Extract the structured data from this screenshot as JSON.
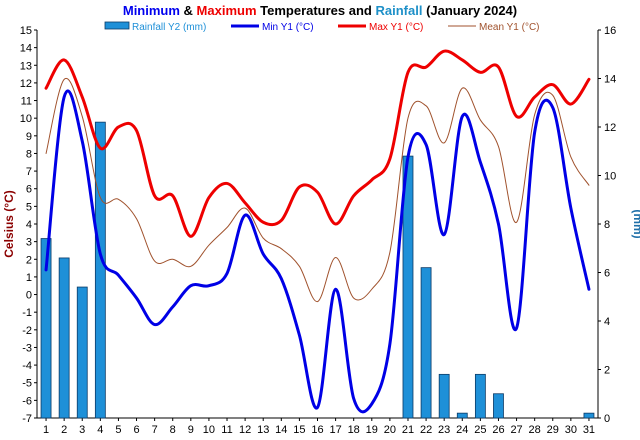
{
  "chart_data": {
    "type": "bar+line",
    "title_parts": [
      {
        "text": "Minimum",
        "color": "#0000ee"
      },
      {
        "text": " & ",
        "color": "#000000"
      },
      {
        "text": "Maximum",
        "color": "#ee0000"
      },
      {
        "text": " Temperatures and ",
        "color": "#000000"
      },
      {
        "text": "Rainfall",
        "color": "#1e90c8"
      },
      {
        "text": " (January 2024)",
        "color": "#000000"
      }
    ],
    "ylabel_left": "Celsius (°C)",
    "ylabel_right": "(mm)",
    "x": [
      1,
      2,
      3,
      4,
      5,
      6,
      7,
      8,
      9,
      10,
      11,
      12,
      13,
      14,
      15,
      16,
      17,
      18,
      19,
      20,
      21,
      22,
      23,
      24,
      25,
      26,
      27,
      28,
      29,
      30,
      31
    ],
    "x_tick_labels": [
      "1",
      "2",
      "3",
      "4",
      "5",
      "6",
      "7",
      "8",
      "9",
      "10",
      "11",
      "12",
      "13",
      "14",
      "15",
      "16",
      "17",
      "18",
      "19",
      "20",
      "21",
      "22",
      "23",
      "24",
      "25",
      "26",
      "27",
      "28",
      "29",
      "30",
      "31"
    ],
    "ylim_left": [
      -7,
      15
    ],
    "yticks_left": [
      "15",
      "14",
      "13",
      "12",
      "11",
      "10",
      "9",
      "8",
      "7",
      "6",
      "5",
      "4",
      "3",
      "2",
      "1",
      "0",
      "-1",
      "-2",
      "-3",
      "-4",
      "-5",
      "-6",
      "-7"
    ],
    "ylim_right": [
      0,
      16
    ],
    "yticks_right": [
      "16",
      "14",
      "12",
      "10",
      "8",
      "6",
      "4",
      "2",
      "0"
    ],
    "series": [
      {
        "name": "Rainfall Y2 (mm)",
        "type": "bar",
        "axis": "right",
        "color": "#1e90d8",
        "values": [
          7.4,
          6.6,
          5.4,
          12.2,
          0,
          0,
          0,
          0,
          0,
          0,
          0,
          0,
          0,
          0,
          0,
          0,
          0,
          0,
          0,
          0,
          10.8,
          6.2,
          1.8,
          0.2,
          1.8,
          1.0,
          0,
          0,
          0,
          0,
          0.2
        ]
      },
      {
        "name": "Min Y1 (°C)",
        "type": "line",
        "axis": "left",
        "color": "#0000e6",
        "values": [
          1.4,
          11.2,
          8.7,
          2.3,
          1.1,
          -0.2,
          -1.7,
          -0.7,
          0.5,
          0.5,
          1.2,
          4.5,
          2.3,
          0.9,
          -2.3,
          -6.4,
          0.3,
          -5.9,
          -6.2,
          -2.8,
          7.8,
          8.5,
          3.4,
          10.1,
          7.5,
          4.0,
          -1.9,
          9.2,
          10.6,
          4.9,
          0.3
        ]
      },
      {
        "name": "Max Y1 (°C)",
        "type": "line",
        "axis": "left",
        "color": "#ee0000",
        "values": [
          11.7,
          13.3,
          11.2,
          8.3,
          9.5,
          9.3,
          5.6,
          5.6,
          3.3,
          5.5,
          6.3,
          5.2,
          4.1,
          4.2,
          6.1,
          5.8,
          4.0,
          5.6,
          6.5,
          7.7,
          12.6,
          12.9,
          13.8,
          13.3,
          12.6,
          12.9,
          10.1,
          11.2,
          11.9,
          10.8,
          12.2
        ]
      },
      {
        "name": "Mean Y1 (°C)",
        "type": "line",
        "axis": "left",
        "color": "#a0522d",
        "values": [
          8.0,
          12.2,
          10.1,
          5.5,
          5.4,
          4.3,
          1.9,
          2.0,
          1.6,
          2.8,
          3.8,
          4.9,
          3.2,
          2.6,
          1.6,
          -0.4,
          2.1,
          -0.2,
          0.3,
          2.4,
          10.0,
          10.7,
          8.6,
          11.7,
          9.9,
          8.4,
          4.1,
          10.2,
          11.3,
          7.8,
          6.2
        ]
      }
    ],
    "legend_position": "top",
    "grid": false
  }
}
